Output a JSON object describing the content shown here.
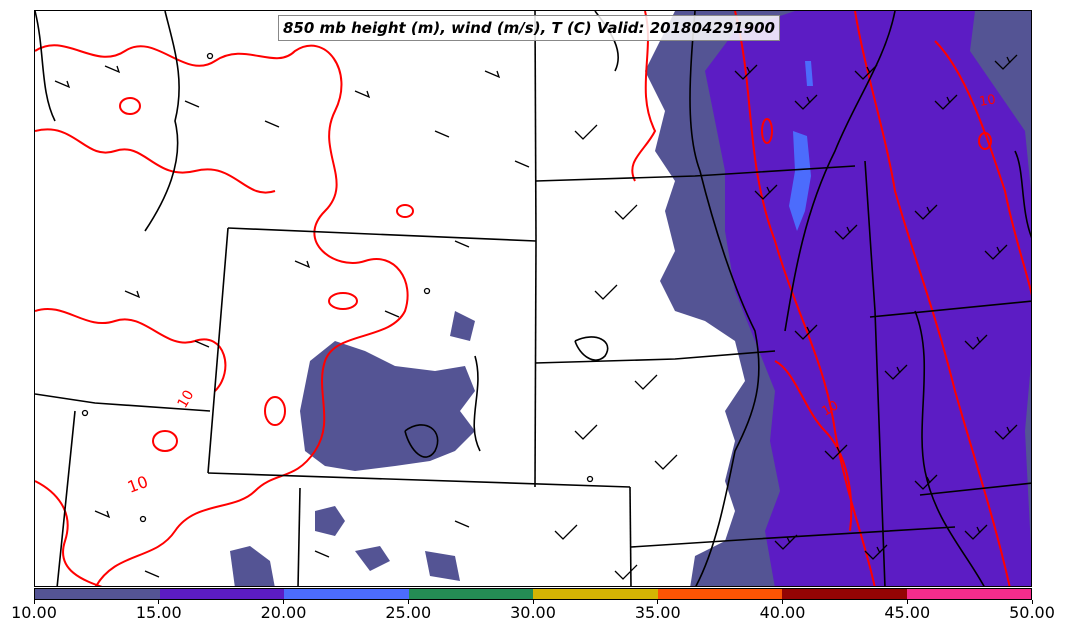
{
  "title": "850 mb height (m), wind (m/s), T (C) Valid: 201804291900",
  "contour_labels": [
    "10",
    "10",
    "10",
    "10"
  ],
  "colorbar": {
    "ticks": [
      "10.00",
      "15.00",
      "20.00",
      "25.00",
      "30.00",
      "35.00",
      "40.00",
      "45.00",
      "50.00"
    ],
    "colors": [
      "#545494",
      "#5c1cc4",
      "#4c6cfc",
      "#248c54",
      "#d4b404",
      "#fc5404",
      "#940404",
      "#f42c8c"
    ],
    "range": [
      10,
      50
    ]
  },
  "style": {
    "shading_low": "#545494",
    "shading_mid": "#5c1cc4",
    "shading_high": "#4c6cfc",
    "temperature_contour": "#ff0000",
    "borders": "#000000"
  }
}
